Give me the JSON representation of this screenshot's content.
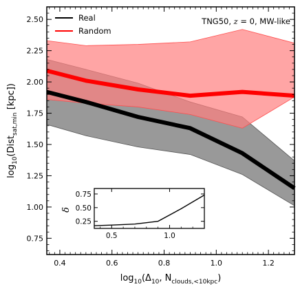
{
  "chart_data": [
    {
      "type": "line",
      "annotation_parts": [
        "TNG50, ",
        "z",
        " = 0, MW-like"
      ],
      "xlabel_parts": [
        "log",
        "10",
        "(Δ",
        "10",
        ", N",
        "clouds,<10kpc",
        ")"
      ],
      "ylabel_parts": [
        "log",
        "10",
        "(Dist",
        "sat,min",
        " [kpc])"
      ],
      "xlim": [
        0.35,
        1.3
      ],
      "ylim": [
        0.62,
        2.6
      ],
      "xticks": [
        0.4,
        0.6,
        0.8,
        1.0,
        1.2
      ],
      "xtick_labels": [
        "0.4",
        "0.6",
        "0.8",
        "1.0",
        "1.2"
      ],
      "yticks": [
        0.75,
        1.0,
        1.25,
        1.5,
        1.75,
        2.0,
        2.25,
        2.5
      ],
      "ytick_labels": [
        "0.75",
        "1.00",
        "1.25",
        "1.50",
        "1.75",
        "2.00",
        "2.25",
        "2.50"
      ],
      "legend_position": "top-left",
      "grid": false,
      "series": [
        {
          "name": "Real",
          "color": "#000000",
          "band_color": "#808080",
          "x": [
            0.35,
            0.5,
            0.7,
            0.9,
            1.1,
            1.3
          ],
          "y": [
            1.92,
            1.84,
            1.72,
            1.63,
            1.43,
            1.15
          ],
          "lower": [
            1.66,
            1.57,
            1.48,
            1.42,
            1.26,
            1.01
          ],
          "upper": [
            2.18,
            2.1,
            1.99,
            1.84,
            1.72,
            1.37
          ]
        },
        {
          "name": "Random",
          "color": "#ff0000",
          "band_color": "#ff7f7f",
          "x": [
            0.35,
            0.5,
            0.7,
            0.9,
            1.1,
            1.3
          ],
          "y": [
            2.09,
            2.01,
            1.94,
            1.89,
            1.92,
            1.89
          ],
          "lower": [
            1.86,
            1.83,
            1.8,
            1.74,
            1.63,
            1.88
          ],
          "upper": [
            2.33,
            2.29,
            2.3,
            2.32,
            2.42,
            2.31
          ]
        }
      ]
    },
    {
      "type": "line",
      "ylabel": "δ",
      "xlim": [
        0.35,
        1.3
      ],
      "ylim": [
        0.12,
        0.85
      ],
      "xticks": [
        0.5,
        1.0
      ],
      "xtick_labels": [
        "0.5",
        "1.0"
      ],
      "yticks": [
        0.25,
        0.5,
        0.75
      ],
      "ytick_labels": [
        "0.25",
        "0.50",
        "0.75"
      ],
      "series": [
        {
          "color": "#000000",
          "x": [
            0.35,
            0.5,
            0.7,
            0.9,
            1.1,
            1.3
          ],
          "y": [
            0.17,
            0.18,
            0.2,
            0.25,
            0.48,
            0.73
          ]
        }
      ]
    }
  ]
}
